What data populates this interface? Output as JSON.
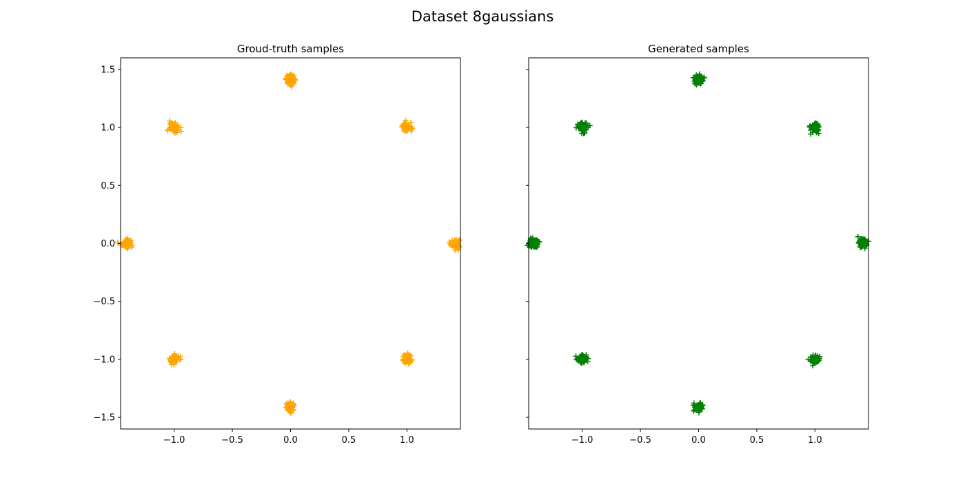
{
  "title": "Dataset 8gaussians",
  "chart_data": [
    {
      "type": "scatter",
      "title": "Groud-truth samples",
      "xlabel": "",
      "ylabel": "",
      "xlim": [
        -1.46,
        1.46
      ],
      "ylim": [
        -1.6,
        1.6
      ],
      "xticks": [
        -1.0,
        -0.5,
        0.0,
        0.5,
        1.0
      ],
      "xtick_labels": [
        "−1.0",
        "−0.5",
        "0.0",
        "0.5",
        "1.0"
      ],
      "yticks": [
        -1.5,
        -1.0,
        -0.5,
        0.0,
        0.5,
        1.0,
        1.5
      ],
      "ytick_labels": [
        "−1.5",
        "−1.0",
        "−0.5",
        "0.0",
        "0.5",
        "1.0",
        "1.5"
      ],
      "show_ytick_labels": true,
      "grid": false,
      "marker": "+",
      "color": "#ffa500",
      "cluster_centers": [
        {
          "x": 1.414,
          "y": 0.0
        },
        {
          "x": -1.414,
          "y": 0.0
        },
        {
          "x": 0.0,
          "y": 1.414
        },
        {
          "x": 0.0,
          "y": -1.414
        },
        {
          "x": 1.0,
          "y": 1.0
        },
        {
          "x": -1.0,
          "y": 1.0
        },
        {
          "x": 1.0,
          "y": -1.0
        },
        {
          "x": -1.0,
          "y": -1.0
        }
      ],
      "cluster_std": 0.02,
      "points_per_cluster": 60
    },
    {
      "type": "scatter",
      "title": "Generated samples",
      "xlabel": "",
      "ylabel": "",
      "xlim": [
        -1.46,
        1.46
      ],
      "ylim": [
        -1.6,
        1.6
      ],
      "xticks": [
        -1.0,
        -0.5,
        0.0,
        0.5,
        1.0
      ],
      "xtick_labels": [
        "−1.0",
        "−0.5",
        "0.0",
        "0.5",
        "1.0"
      ],
      "yticks": [
        -1.5,
        -1.0,
        -0.5,
        0.0,
        0.5,
        1.0,
        1.5
      ],
      "ytick_labels": [],
      "show_ytick_labels": false,
      "grid": false,
      "marker": "+",
      "color": "#008000",
      "cluster_centers": [
        {
          "x": 1.414,
          "y": 0.0
        },
        {
          "x": -1.414,
          "y": 0.0
        },
        {
          "x": 0.0,
          "y": 1.414
        },
        {
          "x": 0.0,
          "y": -1.414
        },
        {
          "x": 1.0,
          "y": 1.0
        },
        {
          "x": -1.0,
          "y": 1.0
        },
        {
          "x": 1.0,
          "y": -1.0
        },
        {
          "x": -1.0,
          "y": -1.0
        }
      ],
      "cluster_std": 0.02,
      "points_per_cluster": 60
    }
  ]
}
